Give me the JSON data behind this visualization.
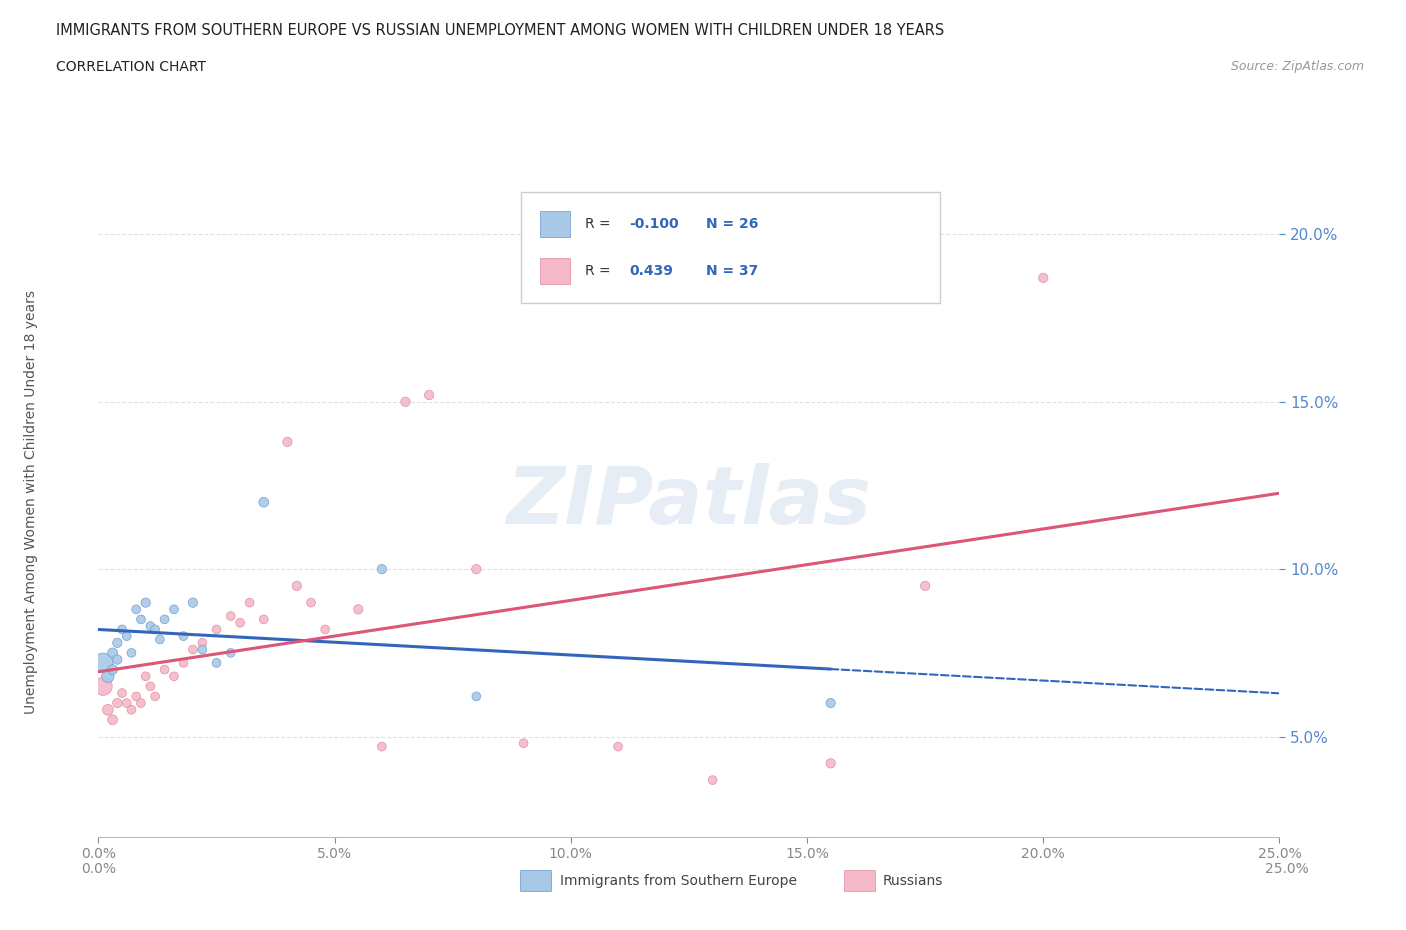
{
  "title": "IMMIGRANTS FROM SOUTHERN EUROPE VS RUSSIAN UNEMPLOYMENT AMONG WOMEN WITH CHILDREN UNDER 18 YEARS",
  "subtitle": "CORRELATION CHART",
  "source": "Source: ZipAtlas.com",
  "ylabel": "Unemployment Among Women with Children Under 18 years",
  "xlim": [
    0.0,
    0.25
  ],
  "ylim": [
    0.02,
    0.22
  ],
  "yticks": [
    0.05,
    0.1,
    0.15,
    0.2
  ],
  "xticks": [
    0.0,
    0.05,
    0.1,
    0.15,
    0.2,
    0.25
  ],
  "background_color": "#ffffff",
  "grid_color": "#e0e0e8",
  "watermark": "ZIPatlas",
  "legend_labels": [
    "Immigrants from Southern Europe",
    "Russians"
  ],
  "series1_color": "#a8c8e8",
  "series1_edge": "#6699cc",
  "series2_color": "#f5b8c8",
  "series2_edge": "#dd8899",
  "line1_color": "#3366bb",
  "line2_color": "#dd5577",
  "R1": -0.1,
  "N1": 26,
  "R2": 0.439,
  "N2": 37,
  "series1_x": [
    0.001,
    0.002,
    0.003,
    0.003,
    0.004,
    0.004,
    0.005,
    0.006,
    0.007,
    0.008,
    0.009,
    0.01,
    0.011,
    0.012,
    0.013,
    0.014,
    0.016,
    0.018,
    0.02,
    0.022,
    0.025,
    0.028,
    0.035,
    0.06,
    0.08,
    0.155
  ],
  "series1_y": [
    0.072,
    0.068,
    0.075,
    0.07,
    0.073,
    0.078,
    0.082,
    0.08,
    0.075,
    0.088,
    0.085,
    0.09,
    0.083,
    0.082,
    0.079,
    0.085,
    0.088,
    0.08,
    0.09,
    0.076,
    0.072,
    0.075,
    0.12,
    0.1,
    0.062,
    0.06
  ],
  "series1_size": [
    200,
    80,
    50,
    50,
    45,
    45,
    40,
    40,
    40,
    40,
    40,
    45,
    40,
    40,
    40,
    40,
    40,
    40,
    45,
    40,
    40,
    40,
    50,
    45,
    40,
    45
  ],
  "series2_x": [
    0.001,
    0.002,
    0.003,
    0.004,
    0.005,
    0.006,
    0.007,
    0.008,
    0.009,
    0.01,
    0.011,
    0.012,
    0.014,
    0.016,
    0.018,
    0.02,
    0.022,
    0.025,
    0.028,
    0.03,
    0.032,
    0.035,
    0.04,
    0.042,
    0.045,
    0.048,
    0.055,
    0.06,
    0.065,
    0.07,
    0.08,
    0.09,
    0.11,
    0.13,
    0.155,
    0.175,
    0.2
  ],
  "series2_y": [
    0.065,
    0.058,
    0.055,
    0.06,
    0.063,
    0.06,
    0.058,
    0.062,
    0.06,
    0.068,
    0.065,
    0.062,
    0.07,
    0.068,
    0.072,
    0.076,
    0.078,
    0.082,
    0.086,
    0.084,
    0.09,
    0.085,
    0.138,
    0.095,
    0.09,
    0.082,
    0.088,
    0.047,
    0.15,
    0.152,
    0.1,
    0.048,
    0.047,
    0.037,
    0.042,
    0.095,
    0.187
  ],
  "series2_size": [
    170,
    60,
    50,
    45,
    40,
    40,
    40,
    40,
    40,
    40,
    40,
    40,
    40,
    40,
    40,
    40,
    40,
    40,
    40,
    40,
    40,
    40,
    45,
    45,
    40,
    40,
    45,
    40,
    45,
    45,
    45,
    40,
    40,
    40,
    45,
    45,
    45
  ]
}
